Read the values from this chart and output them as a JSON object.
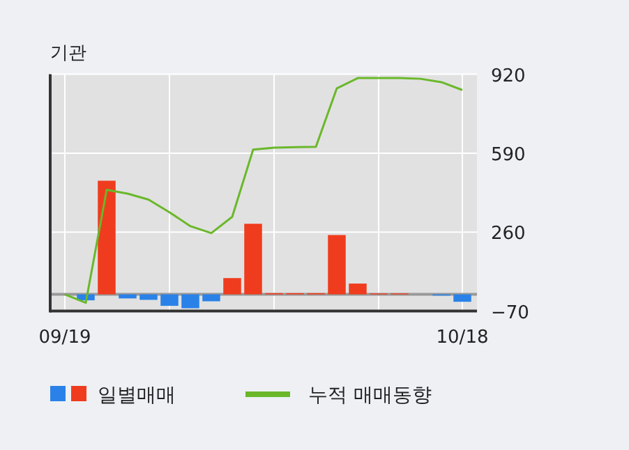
{
  "chart_data": {
    "type": "bar",
    "title": "기관",
    "categories": [
      "09/19",
      null,
      null,
      null,
      null,
      null,
      null,
      null,
      null,
      null,
      null,
      null,
      null,
      null,
      null,
      null,
      null,
      null,
      null,
      "10/18"
    ],
    "series": [
      {
        "name": "일별매매",
        "values": [
          0,
          -25,
          475,
          -17,
          -23,
          -48,
          -58,
          -29,
          68,
          295,
          5,
          5,
          5,
          248,
          45,
          4,
          4,
          0,
          -5,
          -31
        ],
        "colors": [
          "#f03c1e",
          "#2a82e8",
          "#f03c1e",
          "#2a82e8",
          "#2a82e8",
          "#2a82e8",
          "#2a82e8",
          "#2a82e8",
          "#f03c1e",
          "#f03c1e",
          "#f03c1e",
          "#f03c1e",
          "#f03c1e",
          "#f03c1e",
          "#f03c1e",
          "#f03c1e",
          "#f03c1e",
          "#f03c1e",
          "#2a82e8",
          "#2a82e8"
        ]
      },
      {
        "name": "누적 매매동향",
        "type": "line",
        "color": "#6ab82a",
        "values": [
          0,
          -35,
          437,
          421,
          396,
          343,
          285,
          256,
          324,
          605,
          613,
          615,
          617,
          861,
          904,
          904,
          904,
          901,
          887,
          854
        ]
      }
    ],
    "ylim": [
      -70,
      920
    ],
    "yticks": [
      920,
      590,
      260,
      -70
    ],
    "ref_lines": [
      {
        "axis": "y",
        "value": 0,
        "color": "#999999"
      }
    ],
    "grid": true,
    "legend": "bottom"
  }
}
